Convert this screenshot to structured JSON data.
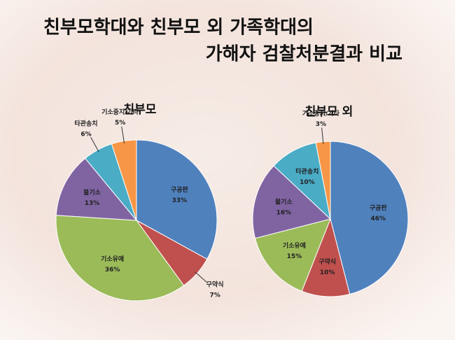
{
  "title": [
    "친부모학대와 친부모 외 가족학대의",
    "가해자 검찰처분결과 비교"
  ],
  "chart_data": [
    {
      "type": "pie",
      "title": "친부모",
      "categories": [
        "구공판",
        "구약식",
        "기소유예",
        "불기소",
        "타관송치",
        "기소중지/기타"
      ],
      "values": [
        33,
        7,
        36,
        13,
        6,
        5
      ],
      "value_labels": [
        "33%",
        "7%",
        "36%",
        "13%",
        "6%",
        "5%"
      ],
      "colors": [
        "#4f81bd",
        "#c0504d",
        "#9bbb59",
        "#8064a2",
        "#4bacc6",
        "#f79646"
      ]
    },
    {
      "type": "pie",
      "title": "친부모 외",
      "categories": [
        "구공판",
        "구약식",
        "기소유예",
        "불기소",
        "타관송치",
        "기소중지/기타"
      ],
      "values": [
        46,
        10,
        15,
        16,
        10,
        3
      ],
      "value_labels": [
        "46%",
        "10%",
        "15%",
        "16%",
        "10%",
        "3%"
      ],
      "colors": [
        "#4f81bd",
        "#c0504d",
        "#9bbb59",
        "#8064a2",
        "#4bacc6",
        "#f79646"
      ]
    }
  ]
}
